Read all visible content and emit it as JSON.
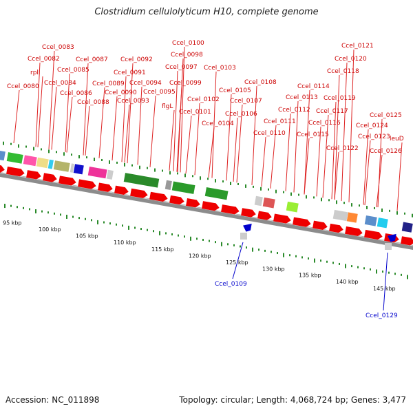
{
  "title": "Clostridium cellulolyticum H10, complete genome",
  "accession_text": "Accession: NC_011898",
  "summary_text": "Topology: circular; Length: 4,068,724 bp; Genes: 3,477",
  "colors": {
    "gene_red": "#ee0000",
    "label_red": "#cc0000",
    "label_blue": "#0000cc",
    "track_grey": "#8c8c8c",
    "tick_green": "#2a8a2a"
  },
  "gene_labels_forward": [
    "Ccel_0080",
    "rplI",
    "Ccel_0082",
    "Ccel_0083",
    "Ccel_0084",
    "Ccel_0085",
    "Ccel_0086",
    "Ccel_0087",
    "Ccel_0088",
    "Ccel_0089",
    "Ccel_0090",
    "Ccel_0091",
    "Ccel_0092",
    "Ccel_0093",
    "Ccel_0094",
    "Ccel_0095",
    "flgL",
    "Ccel_0097",
    "Ccel_0098",
    "Ccel_0099",
    "Ccel_0100",
    "Ccel_0101",
    "Ccel_0102",
    "Ccel_0103",
    "Ccel_0104",
    "Ccel_0105",
    "Ccel_0106",
    "Ccel_0107",
    "Ccel_0108",
    "Ccel_0110",
    "Ccel_0111",
    "Ccel_0112",
    "Ccel_0113",
    "Ccel_0114",
    "Ccel_0115",
    "Ccel_0116",
    "Ccel_0117",
    "Ccel_0118",
    "Ccel_0119",
    "Ccel_0120",
    "Ccel_0121",
    "Ccel_0122",
    "Ccel_0123",
    "Ccel_0124",
    "Ccel_0125",
    "Ccel_0126",
    "leuD"
  ],
  "gene_labels_reverse": [
    "Ccel_0109",
    "Ccel_0129"
  ],
  "scale_labels": [
    "95 kbp",
    "100 kbp",
    "105 kbp",
    "110 kbp",
    "115 kbp",
    "120 kbp",
    "125 kbp",
    "130 kbp",
    "135 kbp",
    "140 kbp",
    "145 kbp"
  ]
}
